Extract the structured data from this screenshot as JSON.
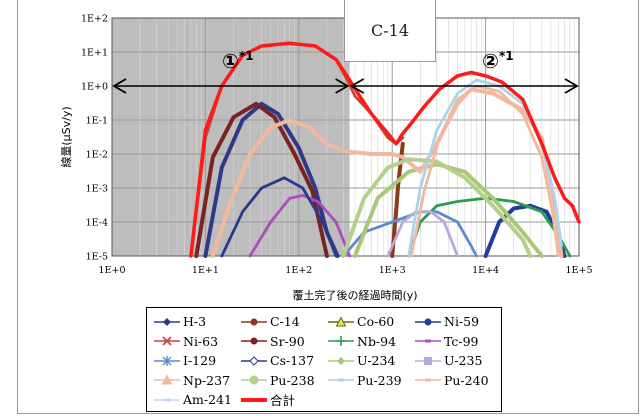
{
  "chart_data": {
    "type": "line",
    "title": "",
    "xlabel": "覆土完了後の経過時間(y)",
    "ylabel": "線量(μSv/y)",
    "xscale": "log",
    "yscale": "log",
    "xlim": [
      1,
      100000
    ],
    "ylim": [
      1e-05,
      100
    ],
    "x_tick_labels": [
      "1E+0",
      "1E+1",
      "1E+2",
      "1E+3",
      "1E+4",
      "1E+5"
    ],
    "y_tick_labels": [
      "1E+2",
      "1E+1",
      "1E+0",
      "1E-1",
      "1E-2",
      "1E-3",
      "1E-4",
      "1E-5"
    ],
    "grid": true,
    "legend_position": "bottom",
    "shaded_region_x": [
      1,
      350
    ],
    "callout": "C-14",
    "periods": [
      {
        "label": "①",
        "sup": "*1",
        "x_range": [
          1,
          350
        ],
        "y": 1
      },
      {
        "label": "②",
        "sup": "*1",
        "x_range": [
          350,
          100000
        ],
        "y": 1
      }
    ],
    "series": [
      {
        "name": "H-3",
        "color": "#2e3a87",
        "marker": "diamond",
        "points": [
          [
            10,
            1e-05
          ],
          [
            15,
            0.004
          ],
          [
            25,
            0.1
          ],
          [
            40,
            0.3
          ],
          [
            60,
            0.15
          ],
          [
            100,
            0.015
          ],
          [
            150,
            0.001
          ],
          [
            200,
            5e-05
          ],
          [
            260,
            1e-05
          ]
        ]
      },
      {
        "name": "C-14",
        "color": "#8b3a1a",
        "marker": "dot",
        "points": [
          [
            1000,
            1e-05
          ],
          [
            1100,
            0.0002
          ],
          [
            1150,
            0.001
          ],
          [
            1200,
            0.003
          ],
          [
            1300,
            0.02
          ]
        ]
      },
      {
        "name": "Co-60",
        "color": "#6b6b00",
        "marker": "triangle",
        "points": []
      },
      {
        "name": "Ni-59",
        "color": "#1f3d9c",
        "marker": "dot",
        "points": [
          [
            10000,
            1e-05
          ],
          [
            14000,
            0.0001
          ],
          [
            20000,
            0.00025
          ],
          [
            30000,
            0.0003
          ],
          [
            45000,
            0.0002
          ],
          [
            60000,
            4e-05
          ],
          [
            70000,
            1e-05
          ]
        ]
      },
      {
        "name": "Ni-63",
        "color": "#c8443c",
        "marker": "x",
        "points": [
          [
            7,
            1e-05
          ],
          [
            10,
            0.03
          ],
          [
            15,
            1
          ],
          [
            25,
            8
          ],
          [
            40,
            15
          ],
          [
            80,
            18
          ],
          [
            150,
            15
          ],
          [
            250,
            6
          ],
          [
            330,
            1.5
          ],
          [
            400,
            0.5
          ],
          [
            600,
            0.15
          ],
          [
            900,
            0.03
          ],
          [
            1100,
            0.02
          ],
          [
            1300,
            0.03
          ]
        ]
      },
      {
        "name": "Sr-90",
        "color": "#7a2323",
        "marker": "dot",
        "points": [
          [
            8,
            1e-05
          ],
          [
            12,
            0.008
          ],
          [
            20,
            0.12
          ],
          [
            35,
            0.3
          ],
          [
            55,
            0.12
          ],
          [
            90,
            0.01
          ],
          [
            140,
            0.0008
          ],
          [
            200,
            1e-05
          ]
        ]
      },
      {
        "name": "Nb-94",
        "color": "#2e9a52",
        "marker": "plus",
        "points": [
          [
            1500,
            1e-05
          ],
          [
            2000,
            0.0001
          ],
          [
            3000,
            0.0003
          ],
          [
            5000,
            0.0004
          ],
          [
            10000,
            0.0005
          ],
          [
            20000,
            0.0004
          ],
          [
            40000,
            0.0002
          ],
          [
            60000,
            4e-05
          ],
          [
            80000,
            1e-05
          ]
        ]
      },
      {
        "name": "Tc-99",
        "color": "#b04ac0",
        "marker": "dash",
        "points": [
          [
            30,
            1e-05
          ],
          [
            50,
            0.0001
          ],
          [
            80,
            0.0005
          ],
          [
            110,
            0.0006
          ],
          [
            160,
            0.0004
          ],
          [
            250,
            0.0001
          ],
          [
            350,
            1e-05
          ]
        ]
      },
      {
        "name": "I-129",
        "color": "#5c8ad0",
        "marker": "star",
        "points": [
          [
            300,
            1e-05
          ],
          [
            500,
            5e-05
          ],
          [
            1000,
            0.0001
          ],
          [
            2000,
            0.0002
          ],
          [
            3000,
            0.0002
          ],
          [
            5000,
            0.0001
          ],
          [
            7000,
            2e-05
          ],
          [
            8000,
            1e-05
          ]
        ]
      },
      {
        "name": "Cs-137",
        "color": "#2a3a8a",
        "marker": "diamond-open",
        "points": [
          [
            15,
            1e-05
          ],
          [
            25,
            0.0002
          ],
          [
            40,
            0.001
          ],
          [
            70,
            0.002
          ],
          [
            110,
            0.001
          ],
          [
            180,
            0.0001
          ],
          [
            250,
            1e-05
          ]
        ]
      },
      {
        "name": "U-234",
        "color": "#a8c878",
        "marker": "diamond",
        "points": [
          [
            400,
            1e-05
          ],
          [
            700,
            0.0005
          ],
          [
            1500,
            0.003
          ],
          [
            3000,
            0.005
          ],
          [
            6000,
            0.003
          ],
          [
            12000,
            0.0005
          ],
          [
            25000,
            5e-05
          ],
          [
            40000,
            1e-05
          ]
        ]
      },
      {
        "name": "U-235",
        "color": "#b8a8d8",
        "marker": "square",
        "points": [
          [
            900,
            1e-05
          ],
          [
            1300,
            0.0001
          ],
          [
            1800,
            0.0002
          ],
          [
            2600,
            0.0002
          ],
          [
            3600,
            0.0001
          ],
          [
            5000,
            1e-05
          ]
        ]
      },
      {
        "name": "Np-237",
        "color": "#f2b8a0",
        "marker": "triangle",
        "points": [
          [
            12,
            1e-05
          ],
          [
            18,
            0.0003
          ],
          [
            30,
            0.01
          ],
          [
            50,
            0.06
          ],
          [
            80,
            0.1
          ],
          [
            130,
            0.06
          ],
          [
            200,
            0.02
          ],
          [
            300,
            0.012
          ],
          [
            600,
            0.01
          ],
          [
            1000,
            0.01
          ],
          [
            1300,
            0.008
          ],
          [
            2000,
            0.003
          ],
          [
            3000,
            0.02
          ],
          [
            5000,
            0.3
          ],
          [
            7000,
            0.8
          ],
          [
            12000,
            0.6
          ],
          [
            25000,
            0.2
          ],
          [
            40000,
            0.03
          ],
          [
            55000,
            0.0003
          ],
          [
            65000,
            1e-05
          ]
        ]
      },
      {
        "name": "Pu-238",
        "color": "#b4d08a",
        "marker": "dot",
        "points": [
          [
            300,
            1e-05
          ],
          [
            500,
            0.0005
          ],
          [
            900,
            0.004
          ],
          [
            1500,
            0.007
          ],
          [
            3000,
            0.006
          ],
          [
            6000,
            0.002
          ],
          [
            12000,
            0.0003
          ],
          [
            25000,
            3e-05
          ],
          [
            30000,
            1e-05
          ]
        ]
      },
      {
        "name": "Pu-239",
        "color": "#a8d4ec",
        "marker": "dash",
        "points": [
          [
            1500,
            1e-05
          ],
          [
            2000,
            0.001
          ],
          [
            3000,
            0.05
          ],
          [
            5000,
            0.6
          ],
          [
            8000,
            1.5
          ],
          [
            14000,
            1
          ],
          [
            25000,
            0.3
          ],
          [
            40000,
            0.02
          ],
          [
            55000,
            0.0005
          ],
          [
            65000,
            2e-05
          ]
        ]
      },
      {
        "name": "Pu-240",
        "color": "#f0b89c",
        "marker": "dash",
        "points": [
          [
            1600,
            1e-05
          ],
          [
            2200,
            0.0008
          ],
          [
            3200,
            0.03
          ],
          [
            5000,
            0.4
          ],
          [
            8000,
            1
          ],
          [
            14000,
            0.7
          ],
          [
            25000,
            0.15
          ],
          [
            40000,
            0.008
          ],
          [
            52000,
            0.0002
          ],
          [
            60000,
            1e-05
          ]
        ]
      },
      {
        "name": "Am-241",
        "color": "#c8d4f4",
        "marker": "dash",
        "points": []
      },
      {
        "name": "合計",
        "color": "#ff1a1a",
        "marker": "thick",
        "points": [
          [
            7,
            1e-05
          ],
          [
            10,
            0.05
          ],
          [
            15,
            1
          ],
          [
            25,
            8
          ],
          [
            40,
            15
          ],
          [
            80,
            18
          ],
          [
            150,
            15
          ],
          [
            250,
            6
          ],
          [
            350,
            1.5
          ],
          [
            450,
            0.5
          ],
          [
            600,
            0.15
          ],
          [
            900,
            0.04
          ],
          [
            1100,
            0.02
          ],
          [
            1300,
            0.04
          ],
          [
            1600,
            0.08
          ],
          [
            2200,
            0.25
          ],
          [
            3200,
            0.8
          ],
          [
            5000,
            2
          ],
          [
            7000,
            2.5
          ],
          [
            10000,
            2
          ],
          [
            15000,
            1.3
          ],
          [
            25000,
            0.4
          ],
          [
            40000,
            0.02
          ],
          [
            55000,
            0.002
          ],
          [
            70000,
            0.0005
          ],
          [
            85000,
            0.0003
          ],
          [
            100000,
            0.0001
          ]
        ]
      }
    ]
  }
}
